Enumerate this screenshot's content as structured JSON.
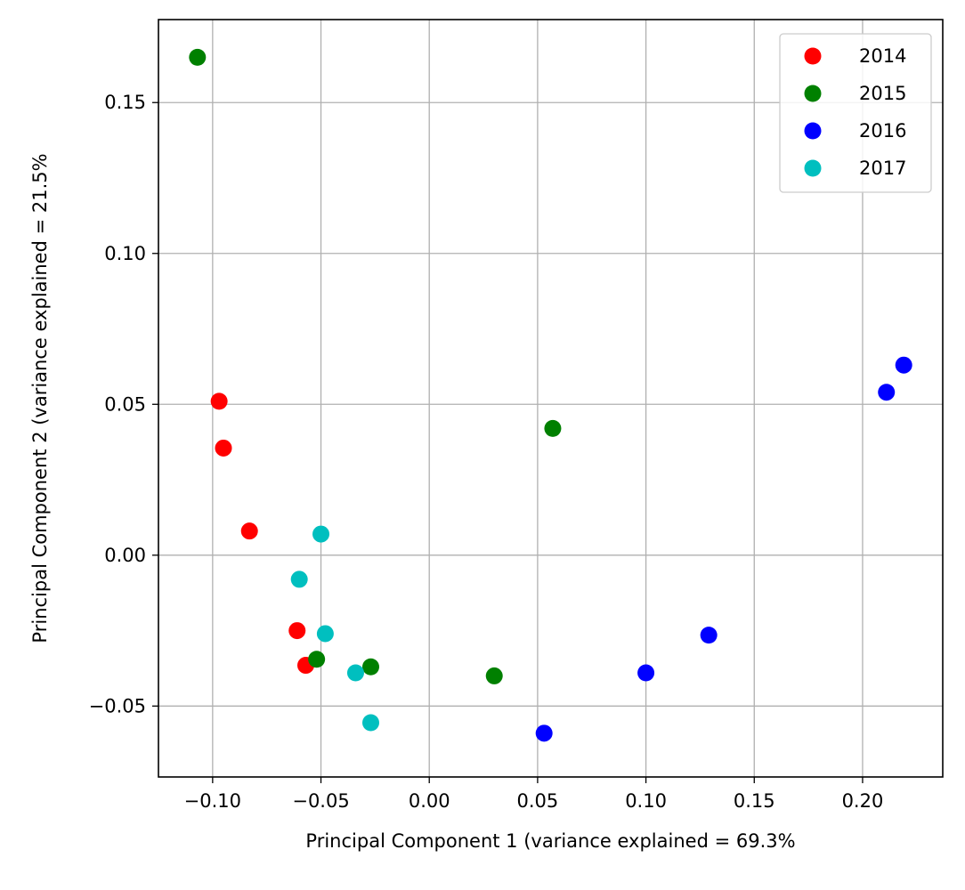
{
  "chart_data": {
    "type": "scatter",
    "title": "",
    "xlabel": "Principal Component 1 (variance explained = 69.3%",
    "ylabel": "Principal Component 2 (variance explained = 21.5%",
    "xlim": [
      -0.125,
      0.237
    ],
    "ylim": [
      -0.0735,
      0.1775
    ],
    "xticks": [
      -0.1,
      -0.05,
      0.0,
      0.05,
      0.1,
      0.15,
      0.2
    ],
    "xtick_labels": [
      "−0.10",
      "−0.05",
      "0.00",
      "0.05",
      "0.10",
      "0.15",
      "0.20"
    ],
    "yticks": [
      -0.05,
      0.0,
      0.05,
      0.1,
      0.15
    ],
    "ytick_labels": [
      "−0.05",
      "0.00",
      "0.05",
      "0.10",
      "0.15"
    ],
    "grid": true,
    "legend_position": "top-right",
    "series": [
      {
        "name": "2014",
        "color": "#ff0000",
        "points": [
          [
            -0.097,
            0.051
          ],
          [
            -0.095,
            0.0355
          ],
          [
            -0.083,
            0.008
          ],
          [
            -0.061,
            -0.025
          ],
          [
            -0.057,
            -0.0365
          ]
        ]
      },
      {
        "name": "2015",
        "color": "#008000",
        "points": [
          [
            -0.107,
            0.165
          ],
          [
            0.057,
            0.042
          ],
          [
            -0.052,
            -0.0345
          ],
          [
            -0.027,
            -0.037
          ],
          [
            0.03,
            -0.04
          ]
        ]
      },
      {
        "name": "2016",
        "color": "#0000ff",
        "points": [
          [
            0.219,
            0.063
          ],
          [
            0.211,
            0.054
          ],
          [
            0.129,
            -0.0265
          ],
          [
            0.1,
            -0.039
          ],
          [
            0.053,
            -0.059
          ]
        ]
      },
      {
        "name": "2017",
        "color": "#00bfbf",
        "points": [
          [
            -0.05,
            0.007
          ],
          [
            -0.06,
            -0.008
          ],
          [
            -0.048,
            -0.026
          ],
          [
            -0.034,
            -0.039
          ],
          [
            -0.027,
            -0.0555
          ]
        ]
      }
    ]
  }
}
